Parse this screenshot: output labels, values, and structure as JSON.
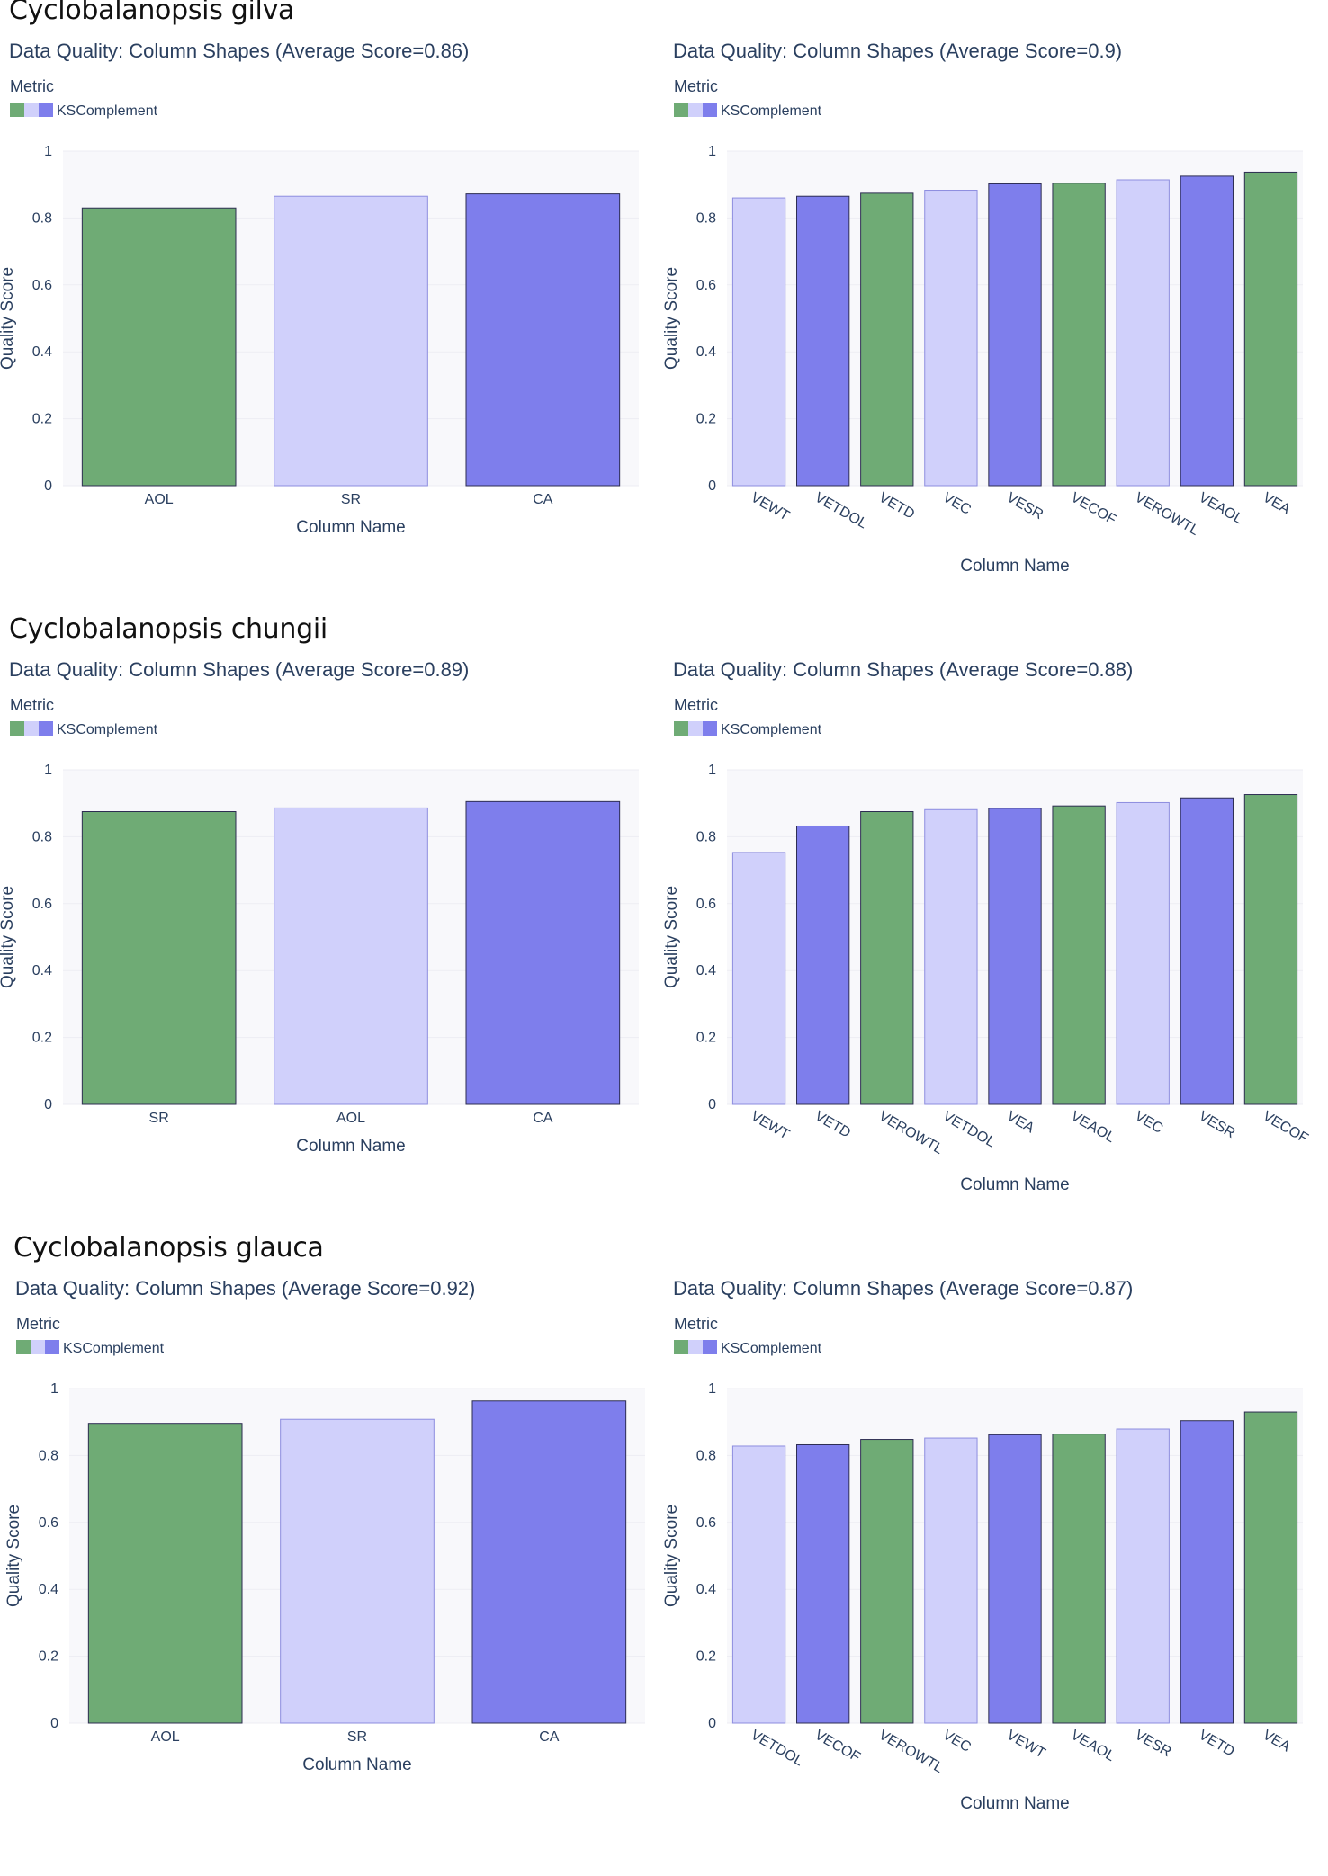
{
  "sections": [
    {
      "title": "Cyclobalanopsis gilva",
      "charts": [
        {
          "chart_data": {
            "type": "bar",
            "title": "Data Quality: Column Shapes (Average Score=0.86)",
            "legend_title": "Metric",
            "legend_label": "KSComplement",
            "xlabel": "Column Name",
            "ylabel": "Quality Score",
            "ylim": [
              0,
              1
            ],
            "yticks": [
              "0",
              "0.2",
              "0.4",
              "0.6",
              "0.8",
              "1"
            ],
            "categories": [
              "AOL",
              "SR",
              "CA"
            ],
            "values": [
              0.83,
              0.865,
              0.872
            ],
            "colors": [
              "#6fab75",
              "#d0d0fb",
              "#7e7eec"
            ],
            "x_tick_angle": 0
          }
        },
        {
          "chart_data": {
            "type": "bar",
            "title": "Data Quality: Column Shapes (Average Score=0.9)",
            "legend_title": "Metric",
            "legend_label": "KSComplement",
            "xlabel": "Column Name",
            "ylabel": "Quality Score",
            "ylim": [
              0,
              1
            ],
            "yticks": [
              "0",
              "0.2",
              "0.4",
              "0.6",
              "0.8",
              "1"
            ],
            "categories": [
              "VEWT",
              "VETDOL",
              "VETD",
              "VEC",
              "VESR",
              "VECOF",
              "VEROWTL",
              "VEAOL",
              "VEA"
            ],
            "values": [
              0.86,
              0.865,
              0.874,
              0.883,
              0.902,
              0.904,
              0.914,
              0.925,
              0.937
            ],
            "colors": [
              "#d0d0fb",
              "#7e7eec",
              "#6fab75",
              "#d0d0fb",
              "#7e7eec",
              "#6fab75",
              "#d0d0fb",
              "#7e7eec",
              "#6fab75"
            ],
            "x_tick_angle": 30
          }
        }
      ]
    },
    {
      "title": "Cyclobalanopsis chungii",
      "charts": [
        {
          "chart_data": {
            "type": "bar",
            "title": "Data Quality: Column Shapes (Average Score=0.89)",
            "legend_title": "Metric",
            "legend_label": "KSComplement",
            "xlabel": "Column Name",
            "ylabel": "Quality Score",
            "ylim": [
              0,
              1
            ],
            "yticks": [
              "0",
              "0.2",
              "0.4",
              "0.6",
              "0.8",
              "1"
            ],
            "categories": [
              "SR",
              "AOL",
              "CA"
            ],
            "values": [
              0.875,
              0.886,
              0.905
            ],
            "colors": [
              "#6fab75",
              "#d0d0fb",
              "#7e7eec"
            ],
            "x_tick_angle": 0
          }
        },
        {
          "chart_data": {
            "type": "bar",
            "title": "Data Quality: Column Shapes (Average Score=0.88)",
            "legend_title": "Metric",
            "legend_label": "KSComplement",
            "xlabel": "Column Name",
            "ylabel": "Quality Score",
            "ylim": [
              0,
              1
            ],
            "yticks": [
              "0",
              "0.2",
              "0.4",
              "0.6",
              "0.8",
              "1"
            ],
            "categories": [
              "VEWT",
              "VETD",
              "VEROWTL",
              "VETDOL",
              "VEA",
              "VEAOL",
              "VEC",
              "VESR",
              "VECOF"
            ],
            "values": [
              0.753,
              0.832,
              0.875,
              0.881,
              0.885,
              0.892,
              0.902,
              0.916,
              0.926
            ],
            "colors": [
              "#d0d0fb",
              "#7e7eec",
              "#6fab75",
              "#d0d0fb",
              "#7e7eec",
              "#6fab75",
              "#d0d0fb",
              "#7e7eec",
              "#6fab75"
            ],
            "x_tick_angle": 30
          }
        }
      ]
    },
    {
      "title": "Cyclobalanopsis glauca",
      "charts": [
        {
          "chart_data": {
            "type": "bar",
            "title": "Data Quality: Column Shapes (Average Score=0.92)",
            "legend_title": "Metric",
            "legend_label": "KSComplement",
            "xlabel": "Column Name",
            "ylabel": "Quality Score",
            "ylim": [
              0,
              1
            ],
            "yticks": [
              "0",
              "0.2",
              "0.4",
              "0.6",
              "0.8",
              "1"
            ],
            "categories": [
              "AOL",
              "SR",
              "CA"
            ],
            "values": [
              0.896,
              0.908,
              0.963
            ],
            "colors": [
              "#6fab75",
              "#d0d0fb",
              "#7e7eec"
            ],
            "x_tick_angle": 0
          }
        },
        {
          "chart_data": {
            "type": "bar",
            "title": "Data Quality: Column Shapes (Average Score=0.87)",
            "legend_title": "Metric",
            "legend_label": "KSComplement",
            "xlabel": "Column Name",
            "ylabel": "Quality Score",
            "ylim": [
              0,
              1
            ],
            "yticks": [
              "0",
              "0.2",
              "0.4",
              "0.6",
              "0.8",
              "1"
            ],
            "categories": [
              "VETDOL",
              "VECOF",
              "VEROWTL",
              "VEC",
              "VEWT",
              "VEAOL",
              "VESR",
              "VETD",
              "VEA"
            ],
            "values": [
              0.828,
              0.832,
              0.848,
              0.852,
              0.862,
              0.864,
              0.879,
              0.904,
              0.93
            ],
            "colors": [
              "#d0d0fb",
              "#7e7eec",
              "#6fab75",
              "#d0d0fb",
              "#7e7eec",
              "#6fab75",
              "#d0d0fb",
              "#7e7eec",
              "#6fab75"
            ],
            "x_tick_angle": 30
          }
        }
      ]
    }
  ]
}
